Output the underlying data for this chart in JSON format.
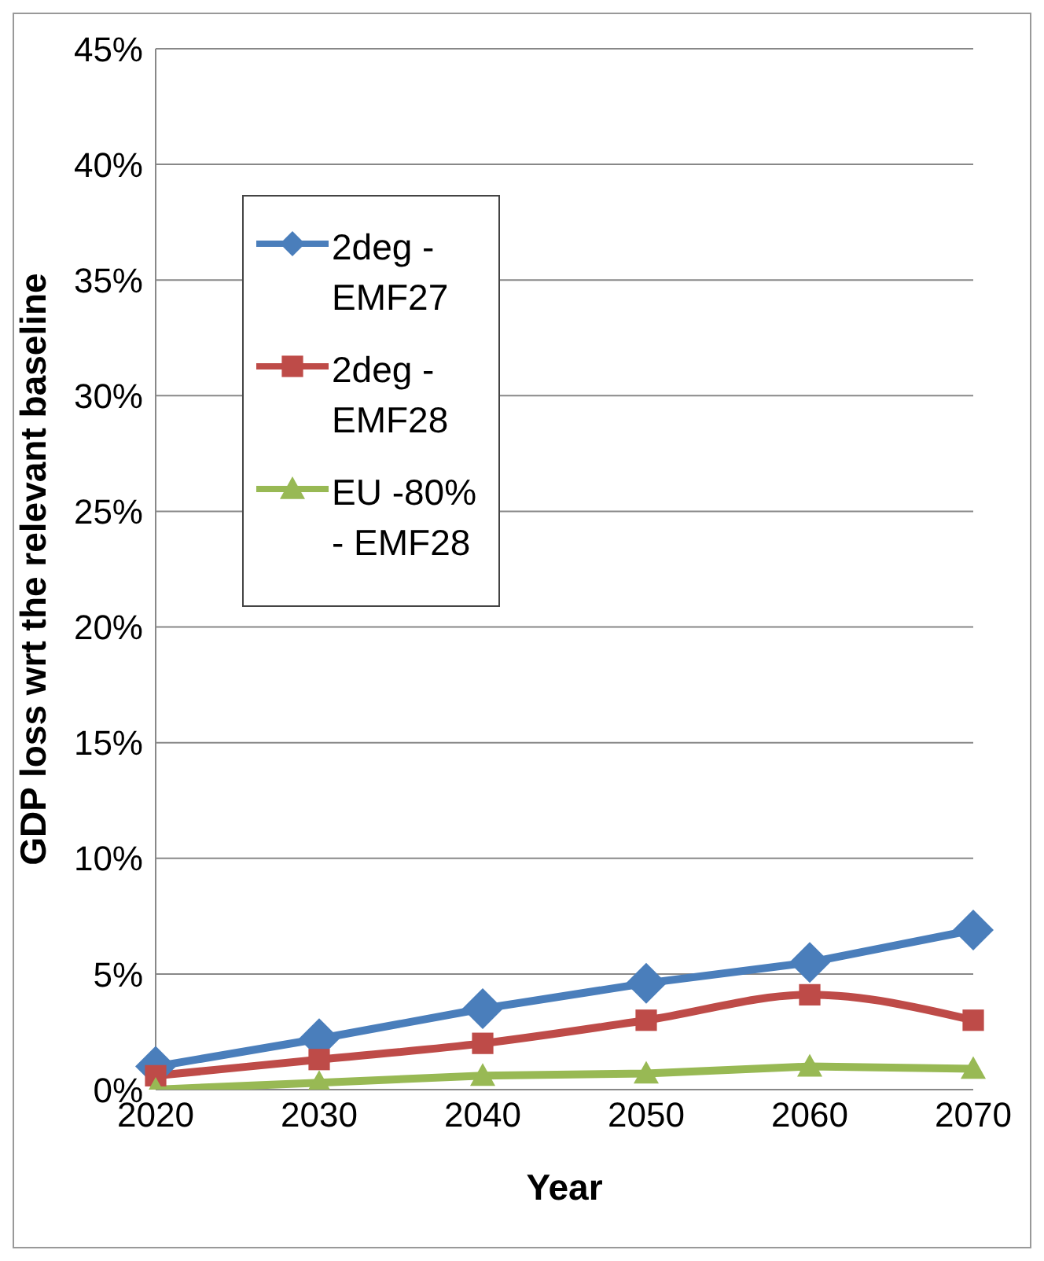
{
  "chart_data": {
    "type": "line",
    "xlabel": "Year",
    "ylabel": "GDP loss wrt the relevant baseline",
    "categories": [
      "2020",
      "2030",
      "2040",
      "2050",
      "2060",
      "2070"
    ],
    "series": [
      {
        "name": "2deg - EMF27",
        "color": "#4a7ebb",
        "marker": "diamond",
        "values": [
          1.0,
          2.2,
          3.5,
          4.6,
          5.5,
          6.9
        ]
      },
      {
        "name": "2deg - EMF28",
        "color": "#be4b48",
        "marker": "square",
        "values": [
          0.6,
          1.3,
          2.0,
          3.0,
          4.1,
          3.0
        ]
      },
      {
        "name": "EU -80% - EMF28",
        "color": "#98b954",
        "marker": "triangle",
        "values": [
          0.0,
          0.3,
          0.6,
          0.7,
          1.0,
          0.9
        ]
      }
    ],
    "ylim": [
      0,
      45
    ],
    "yticks": [
      {
        "value": 0,
        "label": "0%"
      },
      {
        "value": 5,
        "label": "5%"
      },
      {
        "value": 10,
        "label": "10%"
      },
      {
        "value": 15,
        "label": "15%"
      },
      {
        "value": 20,
        "label": "20%"
      },
      {
        "value": 25,
        "label": "25%"
      },
      {
        "value": 30,
        "label": "30%"
      },
      {
        "value": 35,
        "label": "35%"
      },
      {
        "value": 40,
        "label": "40%"
      },
      {
        "value": 45,
        "label": "45%"
      }
    ],
    "grid": "y",
    "legend": "top left"
  }
}
